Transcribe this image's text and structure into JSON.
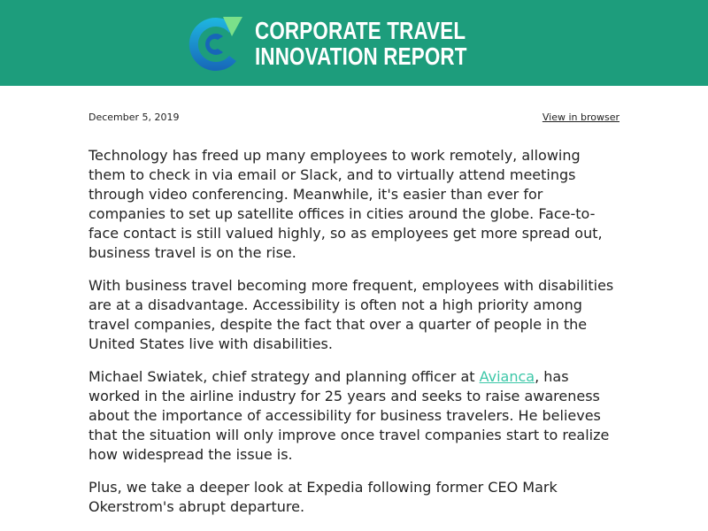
{
  "colors": {
    "header_bg": "#1d9d7c",
    "link": "#3cc7a8",
    "logo_arrow": "#7be08a",
    "logo_ring_light": "#1fb7e0",
    "logo_ring_dark": "#1766b8"
  },
  "header": {
    "logo_icon": "c-arrow-logo-icon",
    "title_line1": "CORPORATE TRAVEL",
    "title_line2": "INNOVATION REPORT"
  },
  "meta": {
    "date": "December 5, 2019",
    "view_link": "View in browser"
  },
  "article": {
    "p1": "Technology has freed up many employees to work remotely, allowing them to check in via email or Slack, and to virtually attend meetings through video conferencing. Meanwhile, it's easier than ever for companies to set up satellite offices in cities around the globe. Face-to-face contact is still valued highly, so as employees get more spread out, business travel is on the rise.",
    "p2": "With business travel becoming more frequent, employees with disabilities are at a disadvantage. Accessibility is often not a high priority among travel companies, despite the fact that over a quarter of people in the United States live with disabilities.",
    "p3_before": "Michael Swiatek, chief strategy and planning officer at ",
    "p3_link": "Avianca",
    "p3_after": ", has worked in the airline industry for 25 years and seeks to raise awareness about the importance of accessibility for business travelers. He believes that the situation will only improve once travel companies start to realize how widespread the issue is.",
    "p4": "Plus, we take a deeper look at Expedia following former CEO Mark Okerstrom's abrupt departure."
  }
}
